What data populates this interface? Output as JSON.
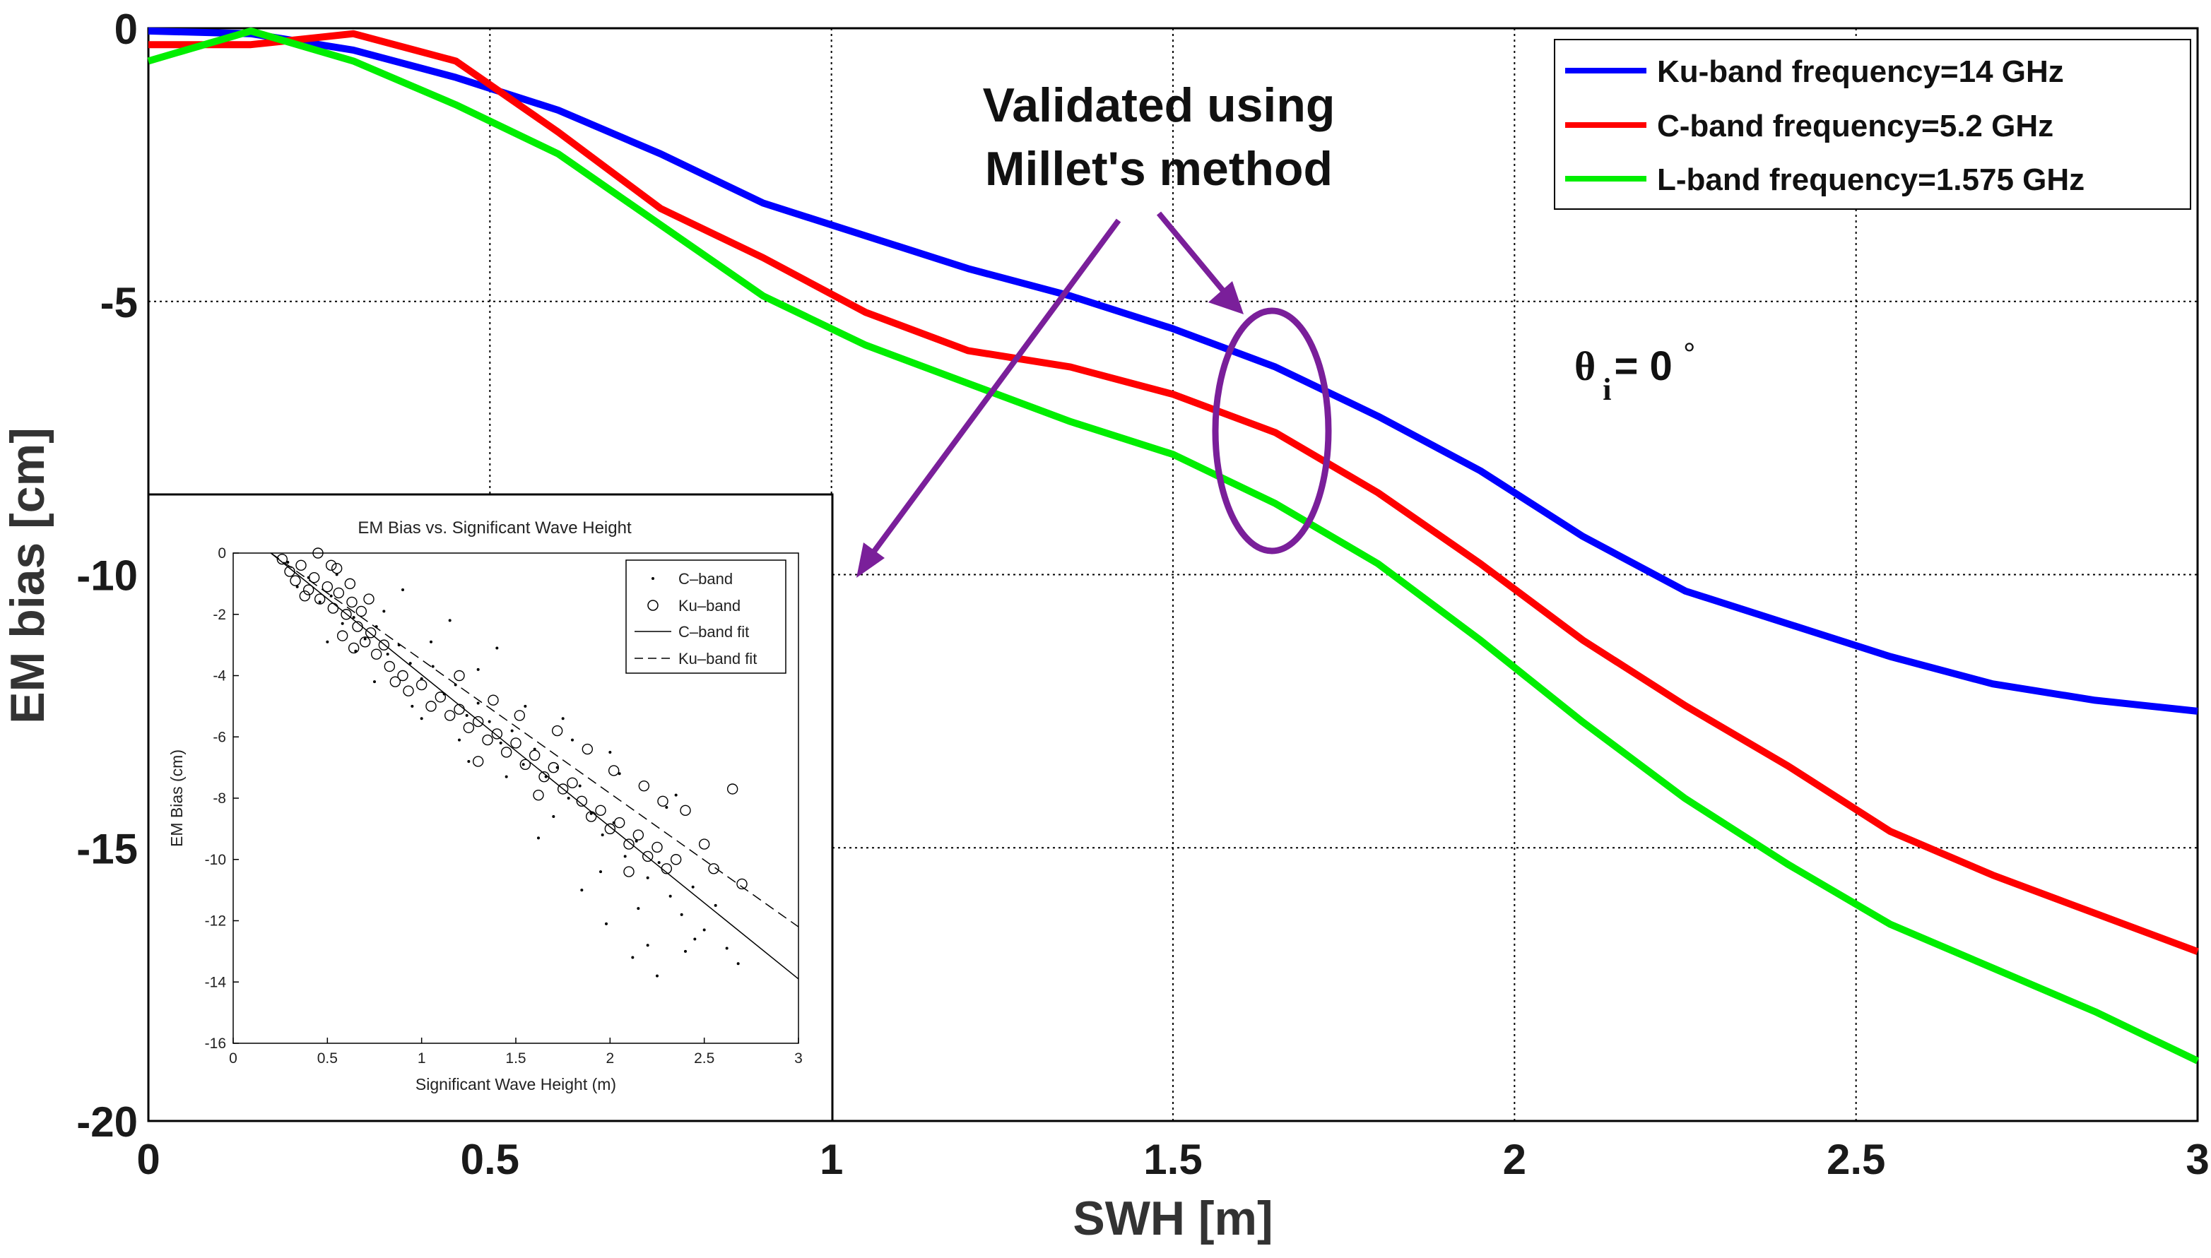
{
  "chart_data": [
    {
      "type": "line",
      "title": "",
      "xlabel": "SWH [m]",
      "ylabel": "EM bias [cm]",
      "xlim": [
        0,
        3
      ],
      "ylim": [
        -20,
        0
      ],
      "xticks": [
        0,
        0.5,
        1,
        1.5,
        2,
        2.5,
        3
      ],
      "xtick_labels": [
        "0",
        "0.5",
        "1",
        "1.5",
        "2",
        "2.5",
        "3"
      ],
      "yticks": [
        0,
        -5,
        -10,
        -15,
        -20
      ],
      "ytick_labels": [
        "0",
        "-5",
        "-10",
        "-15",
        "-20"
      ],
      "grid": true,
      "legend_position": "top-right",
      "series": [
        {
          "name": "Ku-band frequency=14 GHz",
          "color": "#0000ff",
          "x": [
            0,
            0.15,
            0.3,
            0.45,
            0.6,
            0.75,
            0.9,
            1.05,
            1.2,
            1.35,
            1.5,
            1.65,
            1.8,
            1.95,
            2.1,
            2.25,
            2.4,
            2.55,
            2.7,
            2.85,
            3.0
          ],
          "y": [
            -0.05,
            -0.1,
            -0.4,
            -0.9,
            -1.5,
            -2.3,
            -3.2,
            -3.8,
            -4.4,
            -4.9,
            -5.5,
            -6.2,
            -7.1,
            -8.1,
            -9.3,
            -10.3,
            -10.9,
            -11.5,
            -12.0,
            -12.3,
            -12.5
          ]
        },
        {
          "name": "C-band frequency=5.2 GHz",
          "color": "#ff0000",
          "x": [
            0,
            0.15,
            0.3,
            0.45,
            0.6,
            0.75,
            0.9,
            1.05,
            1.2,
            1.35,
            1.5,
            1.65,
            1.8,
            1.95,
            2.1,
            2.25,
            2.4,
            2.55,
            2.7,
            2.85,
            3.0
          ],
          "y": [
            -0.3,
            -0.3,
            -0.1,
            -0.6,
            -1.9,
            -3.3,
            -4.2,
            -5.2,
            -5.9,
            -6.2,
            -6.7,
            -7.4,
            -8.5,
            -9.8,
            -11.2,
            -12.4,
            -13.5,
            -14.7,
            -15.5,
            -16.2,
            -16.9
          ]
        },
        {
          "name": "L-band frequency=1.575 GHz",
          "color": "#00ee00",
          "x": [
            0,
            0.15,
            0.3,
            0.45,
            0.6,
            0.75,
            0.9,
            1.05,
            1.2,
            1.35,
            1.5,
            1.65,
            1.8,
            1.95,
            2.1,
            2.25,
            2.4,
            2.55,
            2.7,
            2.85,
            3.0
          ],
          "y": [
            -0.6,
            -0.05,
            -0.6,
            -1.4,
            -2.3,
            -3.6,
            -4.9,
            -5.8,
            -6.5,
            -7.2,
            -7.8,
            -8.7,
            -9.8,
            -11.2,
            -12.7,
            -14.1,
            -15.3,
            -16.4,
            -17.2,
            -18.0,
            -18.9
          ]
        }
      ],
      "annotations": {
        "validated_line1": "Validated using",
        "validated_line2": "Millet's method",
        "theta_symbol": "θ",
        "theta_sub": "i",
        "theta_value": "= 0",
        "theta_degree": "°"
      }
    },
    {
      "type": "scatter",
      "title": "EM Bias vs. Significant Wave Height",
      "xlabel": "Significant Wave Height (m)",
      "ylabel": "EM Bias (cm)",
      "xlim": [
        0,
        3
      ],
      "ylim": [
        -16,
        0
      ],
      "xticks": [
        0,
        0.5,
        1,
        1.5,
        2,
        2.5,
        3
      ],
      "xtick_labels": [
        "0",
        "0.5",
        "1",
        "1.5",
        "2",
        "2.5",
        "3"
      ],
      "yticks": [
        0,
        -2,
        -4,
        -6,
        -8,
        -10,
        -12,
        -14,
        -16
      ],
      "ytick_labels": [
        "0",
        "-2",
        "-4",
        "-6",
        "-8",
        "-10",
        "-12",
        "-14",
        "-16"
      ],
      "legend_position": "top-right",
      "legend": [
        "C–band",
        "Ku–band",
        "C–band fit",
        "Ku–band fit"
      ],
      "fits": [
        {
          "name": "C–band fit",
          "x": [
            0.2,
            3.0
          ],
          "y": [
            0,
            -13.9
          ]
        },
        {
          "name": "Ku–band fit",
          "x": [
            0.2,
            3.0
          ],
          "y": [
            0,
            -12.2
          ]
        }
      ],
      "scatter_C_band": [
        [
          0.29,
          -0.3
        ],
        [
          0.34,
          -1.1
        ],
        [
          0.4,
          -0.8
        ],
        [
          0.46,
          -1.6
        ],
        [
          0.52,
          -1.4
        ],
        [
          0.58,
          -2.3
        ],
        [
          0.64,
          -2.1
        ],
        [
          0.7,
          -2.8
        ],
        [
          0.76,
          -2.4
        ],
        [
          0.82,
          -3.3
        ],
        [
          0.88,
          -3.0
        ],
        [
          0.94,
          -3.6
        ],
        [
          1.0,
          -4.1
        ],
        [
          1.06,
          -3.7
        ],
        [
          1.12,
          -4.6
        ],
        [
          1.18,
          -4.3
        ],
        [
          1.24,
          -5.3
        ],
        [
          1.3,
          -4.9
        ],
        [
          1.36,
          -5.5
        ],
        [
          1.42,
          -6.2
        ],
        [
          1.48,
          -5.8
        ],
        [
          1.54,
          -6.9
        ],
        [
          1.6,
          -6.4
        ],
        [
          1.66,
          -7.3
        ],
        [
          1.72,
          -7.0
        ],
        [
          1.78,
          -8.0
        ],
        [
          1.84,
          -7.6
        ],
        [
          1.9,
          -8.5
        ],
        [
          1.96,
          -9.2
        ],
        [
          2.02,
          -8.8
        ],
        [
          2.08,
          -9.9
        ],
        [
          2.14,
          -9.4
        ],
        [
          2.2,
          -10.6
        ],
        [
          2.26,
          -10.1
        ],
        [
          2.32,
          -11.2
        ],
        [
          2.38,
          -11.8
        ],
        [
          2.44,
          -10.9
        ],
        [
          2.5,
          -12.3
        ],
        [
          2.56,
          -11.5
        ],
        [
          2.62,
          -12.9
        ],
        [
          2.68,
          -13.4
        ],
        [
          0.55,
          -0.7
        ],
        [
          0.8,
          -1.9
        ],
        [
          1.05,
          -2.9
        ],
        [
          1.3,
          -3.8
        ],
        [
          1.55,
          -5.0
        ],
        [
          1.8,
          -6.1
        ],
        [
          2.05,
          -7.2
        ],
        [
          2.3,
          -8.3
        ],
        [
          1.2,
          -6.1
        ],
        [
          1.45,
          -7.3
        ],
        [
          1.7,
          -8.6
        ],
        [
          1.95,
          -10.4
        ],
        [
          2.2,
          -12.8
        ],
        [
          0.65,
          -3.2
        ],
        [
          0.95,
          -5.0
        ],
        [
          2.25,
          -13.8
        ],
        [
          2.12,
          -13.2
        ],
        [
          1.98,
          -12.1
        ],
        [
          1.85,
          -11.0
        ],
        [
          2.4,
          -13.0
        ],
        [
          1.62,
          -9.3
        ],
        [
          0.9,
          -1.2
        ],
        [
          1.15,
          -2.2
        ],
        [
          1.4,
          -3.1
        ],
        [
          0.5,
          -2.9
        ],
        [
          0.75,
          -4.2
        ],
        [
          1.0,
          -5.4
        ],
        [
          1.25,
          -6.8
        ],
        [
          2.0,
          -6.5
        ],
        [
          2.35,
          -7.9
        ],
        [
          1.75,
          -5.4
        ],
        [
          2.15,
          -11.6
        ],
        [
          2.45,
          -12.6
        ]
      ],
      "scatter_Ku_band": [
        [
          0.26,
          -0.2
        ],
        [
          0.3,
          -0.6
        ],
        [
          0.33,
          -0.9
        ],
        [
          0.36,
          -0.4
        ],
        [
          0.4,
          -1.2
        ],
        [
          0.43,
          -0.8
        ],
        [
          0.46,
          -1.5
        ],
        [
          0.5,
          -1.1
        ],
        [
          0.53,
          -1.8
        ],
        [
          0.56,
          -1.3
        ],
        [
          0.6,
          -2.0
        ],
        [
          0.63,
          -1.6
        ],
        [
          0.66,
          -2.4
        ],
        [
          0.7,
          -2.9
        ],
        [
          0.73,
          -2.6
        ],
        [
          0.76,
          -3.3
        ],
        [
          0.8,
          -3.0
        ],
        [
          0.83,
          -3.7
        ],
        [
          0.86,
          -4.2
        ],
        [
          0.9,
          -4.0
        ],
        [
          0.93,
          -4.5
        ],
        [
          1.0,
          -4.3
        ],
        [
          1.05,
          -5.0
        ],
        [
          1.1,
          -4.7
        ],
        [
          1.15,
          -5.3
        ],
        [
          1.2,
          -5.1
        ],
        [
          1.25,
          -5.7
        ],
        [
          1.3,
          -5.5
        ],
        [
          1.35,
          -6.1
        ],
        [
          1.4,
          -5.9
        ],
        [
          1.45,
          -6.5
        ],
        [
          1.5,
          -6.2
        ],
        [
          1.55,
          -6.9
        ],
        [
          1.6,
          -6.6
        ],
        [
          1.65,
          -7.3
        ],
        [
          1.7,
          -7.0
        ],
        [
          1.75,
          -7.7
        ],
        [
          1.8,
          -7.5
        ],
        [
          1.85,
          -8.1
        ],
        [
          1.9,
          -8.6
        ],
        [
          1.95,
          -8.4
        ],
        [
          2.0,
          -9.0
        ],
        [
          2.05,
          -8.8
        ],
        [
          2.1,
          -9.5
        ],
        [
          2.15,
          -9.2
        ],
        [
          2.2,
          -9.9
        ],
        [
          2.25,
          -9.6
        ],
        [
          2.3,
          -10.3
        ],
        [
          2.35,
          -10.0
        ],
        [
          2.4,
          -8.4
        ],
        [
          2.5,
          -9.5
        ],
        [
          2.55,
          -10.3
        ],
        [
          2.65,
          -7.7
        ],
        [
          2.7,
          -10.8
        ],
        [
          0.55,
          -0.5
        ],
        [
          0.62,
          -1.0
        ],
        [
          0.68,
          -1.9
        ],
        [
          0.72,
          -1.5
        ],
        [
          0.58,
          -2.7
        ],
        [
          0.64,
          -3.1
        ],
        [
          1.2,
          -4.0
        ],
        [
          1.38,
          -4.8
        ],
        [
          1.52,
          -5.3
        ],
        [
          1.72,
          -5.8
        ],
        [
          1.88,
          -6.4
        ],
        [
          2.02,
          -7.1
        ],
        [
          2.18,
          -7.6
        ],
        [
          2.28,
          -8.1
        ],
        [
          0.45,
          0.0
        ],
        [
          0.52,
          -0.4
        ],
        [
          0.38,
          -1.4
        ],
        [
          1.3,
          -6.8
        ],
        [
          1.62,
          -7.9
        ],
        [
          2.1,
          -10.4
        ]
      ]
    }
  ]
}
